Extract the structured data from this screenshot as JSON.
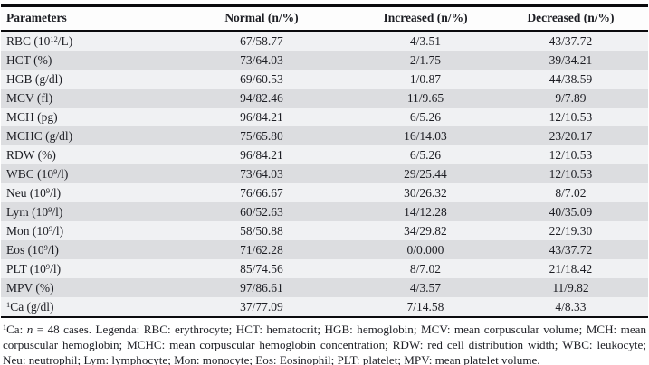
{
  "colors": {
    "text": "#1c1d23",
    "border": "#0b0b0e",
    "row_light": "#f0f1f3",
    "row_dark": "#dcdde0"
  },
  "table": {
    "columns": [
      "Parameters",
      "Normal (n/%)",
      "Increased (n/%)",
      "Decreased (n/%)"
    ],
    "rows": [
      {
        "param": [
          {
            "t": "RBC (10"
          },
          {
            "sup": "12"
          },
          {
            "t": "/L)"
          }
        ],
        "normal": "67/58.77",
        "increased": "4/3.51",
        "decreased": "43/37.72"
      },
      {
        "param": [
          {
            "t": "HCT (%)"
          }
        ],
        "normal": "73/64.03",
        "increased": "2/1.75",
        "decreased": "39/34.21"
      },
      {
        "param": [
          {
            "t": "HGB (g/dl)"
          }
        ],
        "normal": "69/60.53",
        "increased": "1/0.87",
        "decreased": "44/38.59"
      },
      {
        "param": [
          {
            "t": "MCV (fl)"
          }
        ],
        "normal": "94/82.46",
        "increased": "11/9.65",
        "decreased": "9/7.89"
      },
      {
        "param": [
          {
            "t": "MCH (pg)"
          }
        ],
        "normal": "96/84.21",
        "increased": "6/5.26",
        "decreased": "12/10.53"
      },
      {
        "param": [
          {
            "t": "MCHC (g/dl)"
          }
        ],
        "normal": "75/65.80",
        "increased": "16/14.03",
        "decreased": "23/20.17"
      },
      {
        "param": [
          {
            "t": "RDW (%)"
          }
        ],
        "normal": "96/84.21",
        "increased": "6/5.26",
        "decreased": "12/10.53"
      },
      {
        "param": [
          {
            "t": "WBC (10"
          },
          {
            "sup": "9"
          },
          {
            "t": "/l)"
          }
        ],
        "normal": "73/64.03",
        "increased": "29/25.44",
        "decreased": "12/10.53"
      },
      {
        "param": [
          {
            "t": "Neu (10"
          },
          {
            "sup": "9"
          },
          {
            "t": "/l)"
          }
        ],
        "normal": "76/66.67",
        "increased": "30/26.32",
        "decreased": "8/7.02"
      },
      {
        "param": [
          {
            "t": "Lym (10"
          },
          {
            "sup": "9"
          },
          {
            "t": "/l)"
          }
        ],
        "normal": "60/52.63",
        "increased": "14/12.28",
        "decreased": "40/35.09"
      },
      {
        "param": [
          {
            "t": "Mon (10"
          },
          {
            "sup": "9"
          },
          {
            "t": "/l)"
          }
        ],
        "normal": "58/50.88",
        "increased": "34/29.82",
        "decreased": "22/19.30"
      },
      {
        "param": [
          {
            "t": "Eos (10"
          },
          {
            "sup": "9"
          },
          {
            "t": "/l)"
          }
        ],
        "normal": "71/62.28",
        "increased": "0/0.000",
        "decreased": "43/37.72"
      },
      {
        "param": [
          {
            "t": "PLT (10"
          },
          {
            "sup": "9"
          },
          {
            "t": "/l)"
          }
        ],
        "normal": "85/74.56",
        "increased": "8/7.02",
        "decreased": "21/18.42"
      },
      {
        "param": [
          {
            "t": "MPV (%)"
          }
        ],
        "normal": "97/86.61",
        "increased": "4/3.57",
        "decreased": "11/9.82"
      },
      {
        "param": [
          {
            "sup": "1"
          },
          {
            "t": "Ca (g/dl)"
          }
        ],
        "normal": "37/77.09",
        "increased": "7/14.58",
        "decreased": "4/8.33"
      }
    ]
  },
  "footnote": {
    "segments": [
      {
        "sup": "1"
      },
      {
        "t": "Ca: "
      },
      {
        "i": "n"
      },
      {
        "t": " = 48 cases. Legenda: RBC: erythrocyte; HCT: hematocrit; HGB: hemoglobin; MCV: mean corpuscular volume; MCH: mean corpuscular hemoglobin; MCHC: mean corpuscular hemoglobin concentration; RDW: red cell distribution width; WBC: leukocyte; Neu: neutrophil; Lym: lymphocyte; Mon: monocyte; Eos: Eosinophil; PLT: platelet; MPV: mean platelet volume."
      }
    ]
  }
}
